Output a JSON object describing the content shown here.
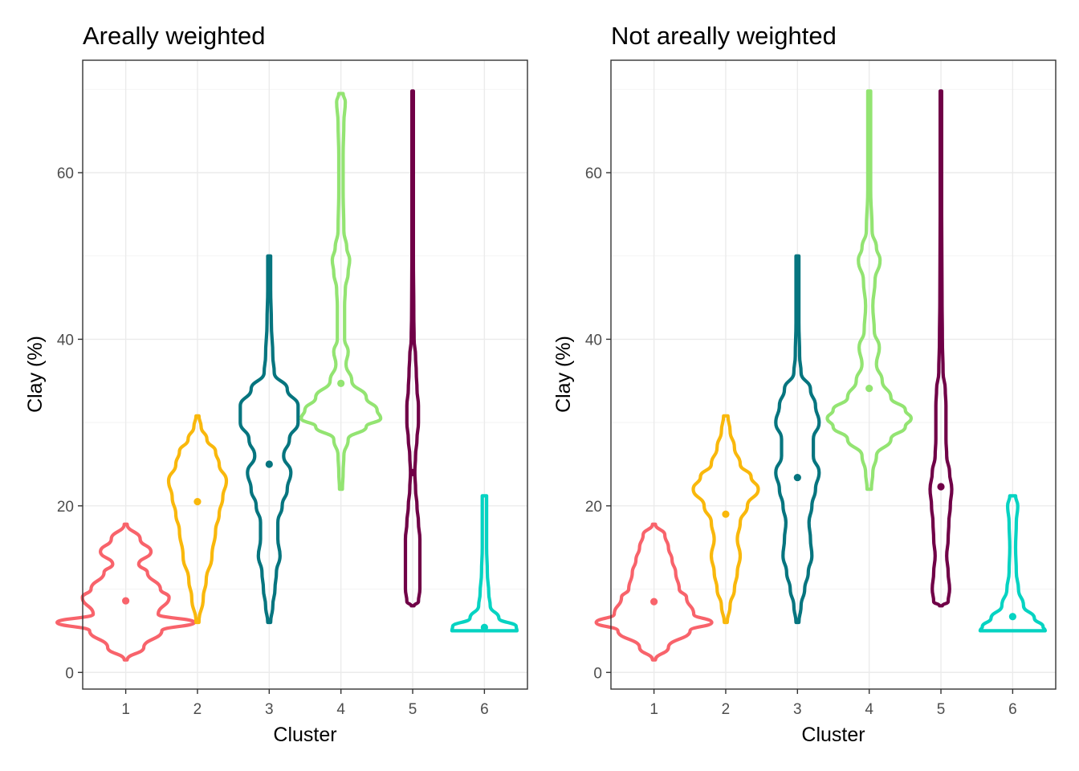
{
  "colors": {
    "clusters": [
      "#F8636B",
      "#F9B80C",
      "#06757F",
      "#93E472",
      "#700047",
      "#06D3C2"
    ],
    "panel_bg": "#FFFFFF",
    "grid": "#EBEBEB",
    "frame": "#333333"
  },
  "chart_data": [
    {
      "type": "violin",
      "title": "Areally weighted",
      "xlabel": "Cluster",
      "ylabel": "Clay (%)",
      "categories": [
        "1",
        "2",
        "3",
        "4",
        "5",
        "6"
      ],
      "ylim": [
        -2,
        73.5
      ],
      "yticks": [
        0,
        20,
        40,
        60
      ],
      "grid": true,
      "legend": "none",
      "series": [
        {
          "category": "1",
          "mean": 8.6,
          "min": 1.5,
          "max": 17.8,
          "density": [
            [
              1.5,
              0.02
            ],
            [
              3,
              0.25
            ],
            [
              5,
              0.5
            ],
            [
              6,
              0.95
            ],
            [
              7,
              0.45
            ],
            [
              9,
              0.6
            ],
            [
              10,
              0.48
            ],
            [
              12,
              0.3
            ],
            [
              13,
              0.18
            ],
            [
              14.5,
              0.35
            ],
            [
              16,
              0.2
            ],
            [
              17.8,
              0.02
            ]
          ]
        },
        {
          "category": "2",
          "mean": 20.5,
          "min": 6,
          "max": 30.8,
          "density": [
            [
              6,
              0.02
            ],
            [
              9,
              0.08
            ],
            [
              11,
              0.12
            ],
            [
              14,
              0.2
            ],
            [
              17,
              0.25
            ],
            [
              19,
              0.3
            ],
            [
              21,
              0.35
            ],
            [
              23,
              0.4
            ],
            [
              25,
              0.3
            ],
            [
              26.5,
              0.25
            ],
            [
              28,
              0.13
            ],
            [
              29.5,
              0.05
            ],
            [
              30.8,
              0.02
            ]
          ]
        },
        {
          "category": "3",
          "mean": 25,
          "min": 6,
          "max": 50,
          "density": [
            [
              6,
              0.02
            ],
            [
              8,
              0.05
            ],
            [
              10,
              0.08
            ],
            [
              12,
              0.1
            ],
            [
              14,
              0.15
            ],
            [
              16,
              0.12
            ],
            [
              18,
              0.12
            ],
            [
              20,
              0.18
            ],
            [
              22,
              0.25
            ],
            [
              24,
              0.3
            ],
            [
              26,
              0.2
            ],
            [
              28,
              0.28
            ],
            [
              30,
              0.4
            ],
            [
              32,
              0.4
            ],
            [
              34,
              0.25
            ],
            [
              36,
              0.07
            ],
            [
              38,
              0.05
            ],
            [
              42,
              0.03
            ],
            [
              46,
              0.02
            ],
            [
              50,
              0.02
            ]
          ]
        },
        {
          "category": "4",
          "mean": 34.7,
          "min": 22,
          "max": 69.5,
          "density": [
            [
              22,
              0.02
            ],
            [
              24,
              0.03
            ],
            [
              26,
              0.04
            ],
            [
              28,
              0.1
            ],
            [
              29.5,
              0.35
            ],
            [
              30.5,
              0.55
            ],
            [
              31.5,
              0.5
            ],
            [
              33,
              0.35
            ],
            [
              35,
              0.15
            ],
            [
              37,
              0.07
            ],
            [
              38.5,
              0.1
            ],
            [
              40,
              0.05
            ],
            [
              44,
              0.05
            ],
            [
              46,
              0.06
            ],
            [
              48,
              0.1
            ],
            [
              49.5,
              0.12
            ],
            [
              51,
              0.08
            ],
            [
              53,
              0.04
            ],
            [
              58,
              0.03
            ],
            [
              62,
              0.03
            ],
            [
              66,
              0.04
            ],
            [
              68.5,
              0.06
            ],
            [
              69.5,
              0.03
            ]
          ]
        },
        {
          "category": "5",
          "mean": 24,
          "min": 8,
          "max": 69.8,
          "density": [
            [
              8,
              0.02
            ],
            [
              8.5,
              0.08
            ],
            [
              10,
              0.1
            ],
            [
              14,
              0.1
            ],
            [
              16,
              0.1
            ],
            [
              18,
              0.08
            ],
            [
              20,
              0.06
            ],
            [
              22,
              0.04
            ],
            [
              24,
              0.03
            ],
            [
              26,
              0.04
            ],
            [
              28,
              0.06
            ],
            [
              30,
              0.08
            ],
            [
              32,
              0.08
            ],
            [
              34,
              0.06
            ],
            [
              36,
              0.05
            ],
            [
              38,
              0.04
            ],
            [
              40,
              0.02
            ],
            [
              43,
              0.015
            ],
            [
              50,
              0.01
            ],
            [
              60,
              0.01
            ],
            [
              69.8,
              0.01
            ]
          ]
        },
        {
          "category": "6",
          "mean": 5.4,
          "min": 5,
          "max": 21.2,
          "density": [
            [
              5,
              0.45
            ],
            [
              5.5,
              0.44
            ],
            [
              6.5,
              0.2
            ],
            [
              8,
              0.08
            ],
            [
              9.5,
              0.06
            ],
            [
              12,
              0.04
            ],
            [
              15,
              0.03
            ],
            [
              18,
              0.03
            ],
            [
              21.2,
              0.03
            ]
          ]
        }
      ]
    },
    {
      "type": "violin",
      "title": "Not areally weighted",
      "xlabel": "Cluster",
      "ylabel": "Clay (%)",
      "categories": [
        "1",
        "2",
        "3",
        "4",
        "5",
        "6"
      ],
      "ylim": [
        -2,
        73.5
      ],
      "yticks": [
        0,
        20,
        40,
        60
      ],
      "grid": true,
      "legend": "none",
      "series": [
        {
          "category": "1",
          "mean": 8.5,
          "min": 1.5,
          "max": 17.8,
          "density": [
            [
              1.5,
              0.02
            ],
            [
              3,
              0.2
            ],
            [
              5,
              0.5
            ],
            [
              6,
              0.8
            ],
            [
              7,
              0.55
            ],
            [
              9,
              0.45
            ],
            [
              10,
              0.35
            ],
            [
              12,
              0.3
            ],
            [
              13.5,
              0.25
            ],
            [
              15,
              0.2
            ],
            [
              16.5,
              0.15
            ],
            [
              17.8,
              0.02
            ]
          ]
        },
        {
          "category": "2",
          "mean": 19,
          "min": 6,
          "max": 30.8,
          "density": [
            [
              6,
              0.02
            ],
            [
              8,
              0.06
            ],
            [
              10,
              0.12
            ],
            [
              12,
              0.16
            ],
            [
              14,
              0.2
            ],
            [
              16,
              0.16
            ],
            [
              18,
              0.2
            ],
            [
              20,
              0.3
            ],
            [
              22,
              0.45
            ],
            [
              23.5,
              0.35
            ],
            [
              25,
              0.2
            ],
            [
              27,
              0.12
            ],
            [
              29,
              0.06
            ],
            [
              30.8,
              0.03
            ]
          ]
        },
        {
          "category": "3",
          "mean": 23.4,
          "min": 6,
          "max": 50,
          "density": [
            [
              6,
              0.02
            ],
            [
              8,
              0.05
            ],
            [
              10,
              0.1
            ],
            [
              12,
              0.15
            ],
            [
              14,
              0.2
            ],
            [
              16,
              0.18
            ],
            [
              18,
              0.16
            ],
            [
              20,
              0.2
            ],
            [
              22,
              0.25
            ],
            [
              24,
              0.3
            ],
            [
              26,
              0.22
            ],
            [
              28,
              0.22
            ],
            [
              30,
              0.3
            ],
            [
              32,
              0.25
            ],
            [
              34,
              0.18
            ],
            [
              36,
              0.05
            ],
            [
              38,
              0.03
            ],
            [
              42,
              0.02
            ],
            [
              46,
              0.02
            ],
            [
              50,
              0.02
            ]
          ]
        },
        {
          "category": "4",
          "mean": 34.1,
          "min": 22,
          "max": 69.8,
          "density": [
            [
              22,
              0.03
            ],
            [
              24,
              0.05
            ],
            [
              26,
              0.1
            ],
            [
              28,
              0.3
            ],
            [
              29.5,
              0.5
            ],
            [
              30.5,
              0.58
            ],
            [
              31.5,
              0.5
            ],
            [
              33,
              0.3
            ],
            [
              35,
              0.18
            ],
            [
              37,
              0.1
            ],
            [
              39,
              0.14
            ],
            [
              41,
              0.07
            ],
            [
              44,
              0.05
            ],
            [
              47,
              0.08
            ],
            [
              49.5,
              0.15
            ],
            [
              51,
              0.1
            ],
            [
              53,
              0.04
            ],
            [
              58,
              0.02
            ],
            [
              62,
              0.02
            ],
            [
              66,
              0.02
            ],
            [
              69.8,
              0.02
            ]
          ]
        },
        {
          "category": "5",
          "mean": 22.3,
          "min": 8,
          "max": 69.8,
          "density": [
            [
              8,
              0.02
            ],
            [
              8.5,
              0.1
            ],
            [
              10,
              0.12
            ],
            [
              12,
              0.1
            ],
            [
              14,
              0.08
            ],
            [
              16,
              0.1
            ],
            [
              18,
              0.11
            ],
            [
              20,
              0.13
            ],
            [
              22,
              0.15
            ],
            [
              24,
              0.12
            ],
            [
              26,
              0.08
            ],
            [
              28,
              0.07
            ],
            [
              30,
              0.07
            ],
            [
              32,
              0.07
            ],
            [
              34,
              0.06
            ],
            [
              36,
              0.03
            ],
            [
              40,
              0.02
            ],
            [
              45,
              0.015
            ],
            [
              55,
              0.01
            ],
            [
              69.8,
              0.01
            ]
          ]
        },
        {
          "category": "6",
          "mean": 6.7,
          "min": 5,
          "max": 21.2,
          "density": [
            [
              5,
              0.45
            ],
            [
              5.5,
              0.42
            ],
            [
              6.5,
              0.3
            ],
            [
              8,
              0.15
            ],
            [
              10,
              0.08
            ],
            [
              12,
              0.05
            ],
            [
              15,
              0.04
            ],
            [
              18,
              0.05
            ],
            [
              20,
              0.07
            ],
            [
              21.2,
              0.04
            ]
          ]
        }
      ]
    }
  ]
}
